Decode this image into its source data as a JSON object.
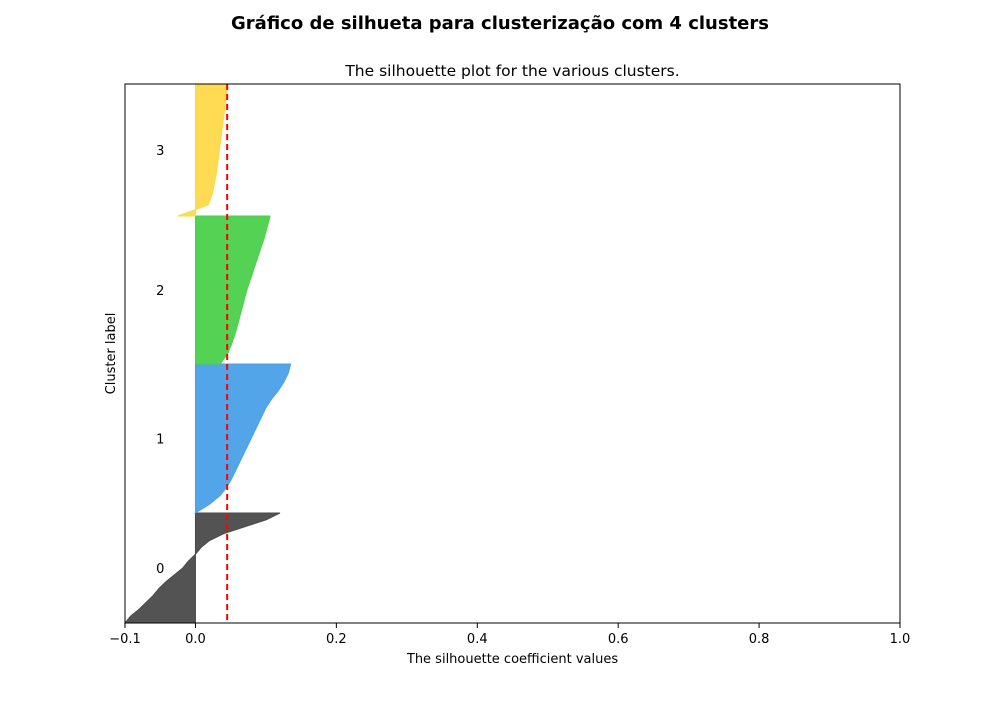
{
  "figure": {
    "suptitle": "Gráfico de silhueta para clusterização com 4 clusters"
  },
  "chart_data": {
    "type": "area",
    "title": "The silhouette plot for the various clusters.",
    "xlabel": "The silhouette coefficient values",
    "ylabel": "Cluster label",
    "xlim": [
      -0.1,
      1.0
    ],
    "xticks": [
      -0.1,
      0.0,
      0.2,
      0.4,
      0.6,
      0.8,
      1.0
    ],
    "xtick_labels": [
      "−0.1",
      "0.0",
      "0.2",
      "0.4",
      "0.6",
      "0.8",
      "1.0"
    ],
    "grid": false,
    "average_silhouette_score": 0.045,
    "average_line_color": "#ff0000",
    "clusters": [
      {
        "label": "0",
        "color": "#4a4a4a",
        "sorted_silhouette_values": [
          -0.1,
          -0.092,
          -0.08,
          -0.07,
          -0.06,
          -0.052,
          -0.042,
          -0.03,
          -0.018,
          -0.01,
          0.0,
          0.008,
          0.02,
          0.04,
          0.07,
          0.1,
          0.12
        ]
      },
      {
        "label": "1",
        "color": "#4aa0e8",
        "sorted_silhouette_values": [
          0.0,
          0.02,
          0.035,
          0.045,
          0.052,
          0.058,
          0.064,
          0.07,
          0.076,
          0.082,
          0.088,
          0.094,
          0.1,
          0.108,
          0.118,
          0.126,
          0.132,
          0.135
        ]
      },
      {
        "label": "2",
        "color": "#4bd04b",
        "sorted_silhouette_values": [
          0.035,
          0.046,
          0.052,
          0.057,
          0.061,
          0.065,
          0.069,
          0.073,
          0.078,
          0.083,
          0.088,
          0.093,
          0.098,
          0.102,
          0.106
        ]
      },
      {
        "label": "3",
        "color": "#ffd84a",
        "sorted_silhouette_values": [
          -0.025,
          0.018,
          0.024,
          0.027,
          0.03,
          0.032,
          0.034,
          0.036,
          0.038,
          0.04,
          0.042,
          0.044,
          0.046
        ]
      }
    ]
  }
}
